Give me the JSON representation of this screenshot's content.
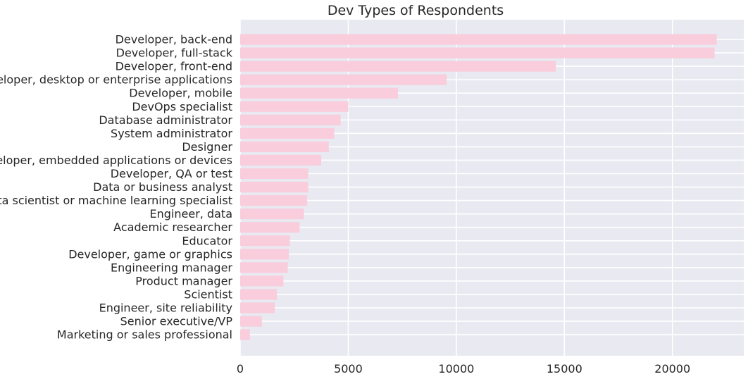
{
  "chart_data": {
    "type": "bar",
    "orientation": "horizontal",
    "title": "Dev Types of Respondents",
    "xlabel": "",
    "ylabel": "",
    "xlim": [
      0,
      23300
    ],
    "xticks": [
      0,
      5000,
      10000,
      15000,
      20000
    ],
    "grid": true,
    "bar_color": "#f9cddc",
    "background_color": "#e9e9f1",
    "categories": [
      "Developer, back-end",
      "Developer, full-stack",
      "Developer, front-end",
      "Developer, desktop or enterprise applications",
      "Developer, mobile",
      "DevOps specialist",
      "Database administrator",
      "System administrator",
      "Designer",
      "Developer, embedded applications or devices",
      "Developer, QA or test",
      "Data or business analyst",
      "Data scientist or machine learning specialist",
      "Engineer, data",
      "Academic researcher",
      "Educator",
      "Developer, game or graphics",
      "Engineering manager",
      "Product manager",
      "Scientist",
      "Engineer, site reliability",
      "Senior executive/VP",
      "Marketing or sales professional"
    ],
    "values": [
      22050,
      21950,
      14600,
      9550,
      7300,
      5000,
      4650,
      4350,
      4100,
      3750,
      3150,
      3150,
      3100,
      2950,
      2750,
      2300,
      2250,
      2200,
      2000,
      1700,
      1600,
      1000,
      450
    ]
  }
}
